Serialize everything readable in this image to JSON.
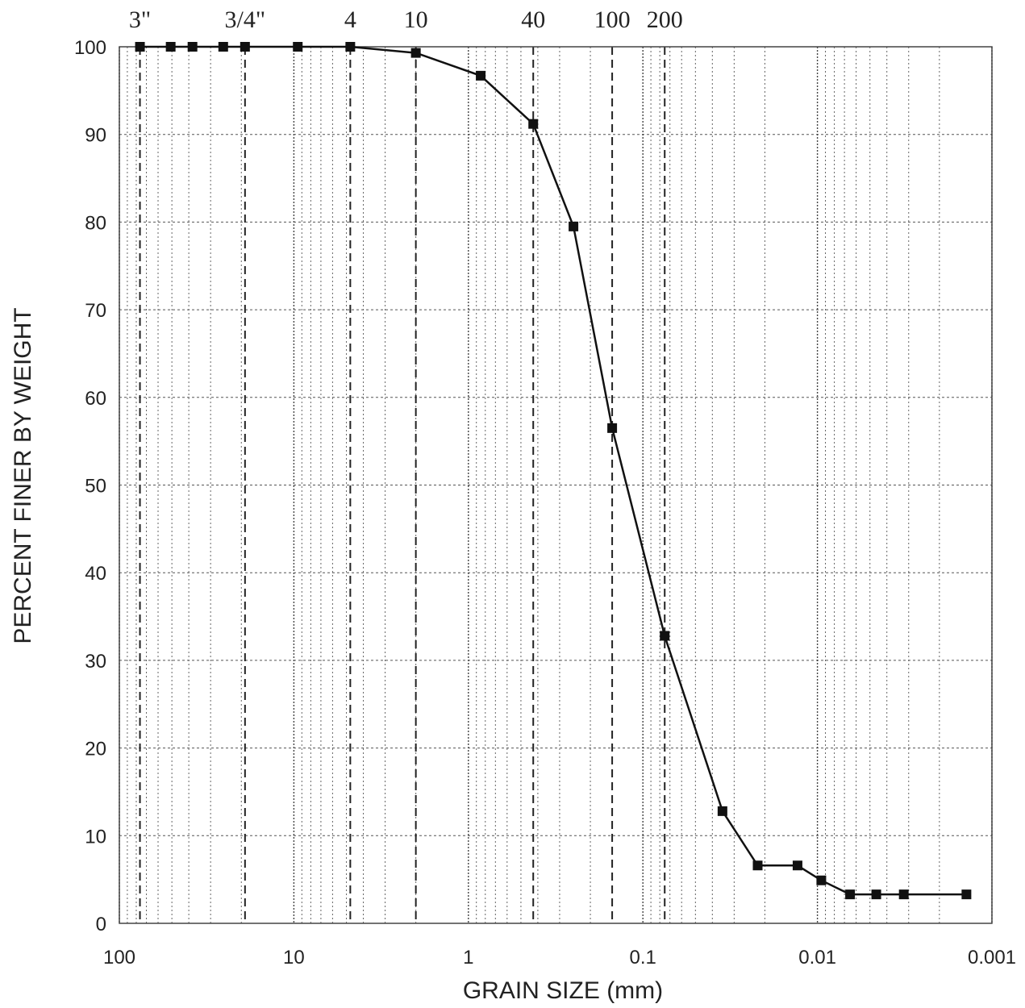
{
  "chart_data": {
    "type": "line",
    "title": "",
    "xlabel": "GRAIN SIZE (mm)",
    "ylabel": "PERCENT FINER BY WEIGHT",
    "x_scale": "log",
    "x_reversed": true,
    "xlim": [
      100,
      0.001
    ],
    "ylim": [
      0,
      100
    ],
    "x_ticks": [
      {
        "value": 100,
        "label": "100"
      },
      {
        "value": 10,
        "label": "10"
      },
      {
        "value": 1,
        "label": "1"
      },
      {
        "value": 0.1,
        "label": "0.1"
      },
      {
        "value": 0.01,
        "label": "0.01"
      },
      {
        "value": 0.001,
        "label": "0.001"
      }
    ],
    "y_ticks": [
      0,
      10,
      20,
      30,
      40,
      50,
      60,
      70,
      80,
      90,
      100
    ],
    "sieve_sizes": [
      {
        "label": "3\"",
        "size_mm": 76.2
      },
      {
        "label": "3/4\"",
        "size_mm": 19.05
      },
      {
        "label": "4",
        "size_mm": 4.75
      },
      {
        "label": "10",
        "size_mm": 2.0
      },
      {
        "label": "40",
        "size_mm": 0.425
      },
      {
        "label": "100",
        "size_mm": 0.15
      },
      {
        "label": "200",
        "size_mm": 0.075
      }
    ],
    "grid": true,
    "series": [
      {
        "x": [
          76.2,
          50.8,
          38.1,
          25.4,
          19.05,
          9.5,
          4.75,
          2.0,
          0.85,
          0.425,
          0.25,
          0.15,
          0.075,
          0.035,
          0.022,
          0.013,
          0.0095,
          0.0065,
          0.0046,
          0.0032,
          0.0014
        ],
        "y": [
          100,
          100,
          100,
          100,
          100,
          100,
          100,
          99.3,
          96.7,
          91.2,
          79.5,
          56.5,
          32.8,
          12.8,
          6.6,
          6.6,
          4.9,
          3.3,
          3.3,
          3.3,
          3.3
        ]
      }
    ]
  }
}
